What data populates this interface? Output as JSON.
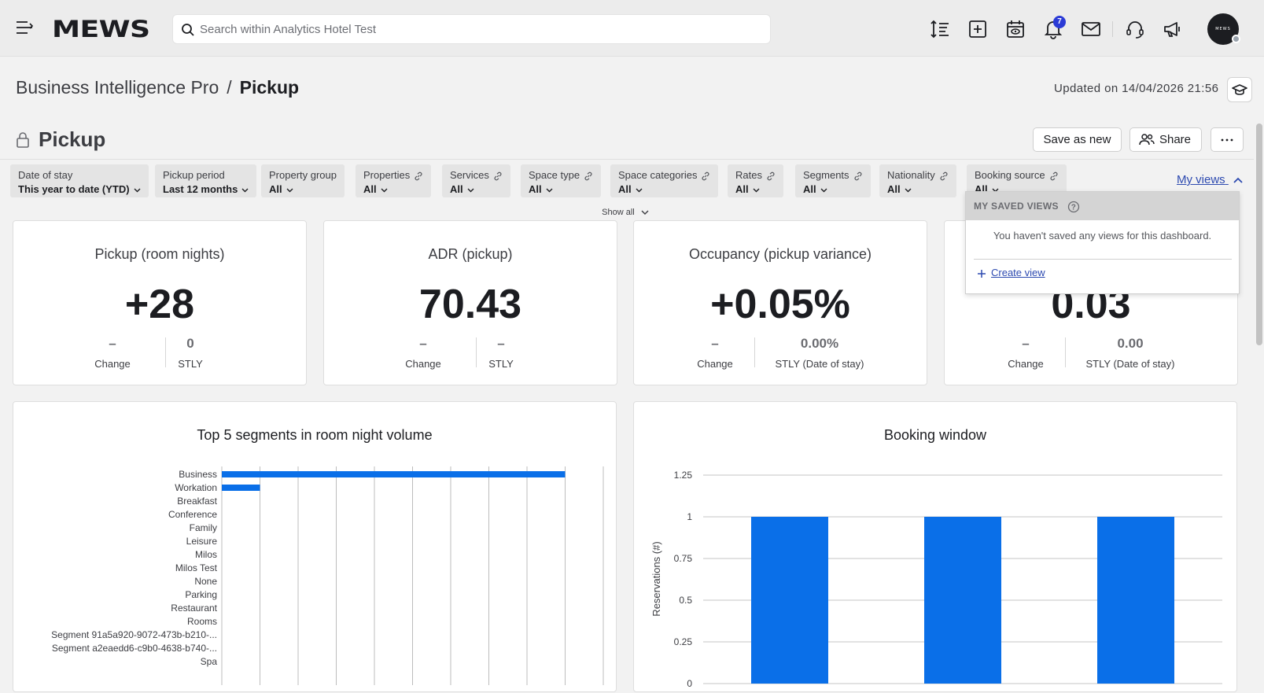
{
  "topbar": {
    "logo": "MEWS",
    "search_placeholder": "Search within Analytics Hotel Test",
    "notifications_count": "7",
    "avatar_text": "MEWS",
    "icons": [
      "menu-icon",
      "sort-icon",
      "add-icon",
      "calendar-view-icon",
      "bell-icon",
      "mail-icon",
      "headset-icon",
      "megaphone-icon"
    ]
  },
  "breadcrumb": {
    "parent": "Business Intelligence Pro",
    "separator": "/",
    "current": "Pickup"
  },
  "updated": "Updated on 14/04/2026 21:56",
  "page": {
    "title": "Pickup",
    "save_as_new": "Save as new",
    "share": "Share"
  },
  "filters": [
    {
      "label": "Date of stay",
      "value": "This year to date (YTD)",
      "linked": false
    },
    {
      "label": "Pickup period",
      "value": "Last 12 months",
      "linked": false
    },
    {
      "label": "Property group",
      "value": "All",
      "linked": false
    },
    {
      "label": "Properties",
      "value": "All",
      "linked": true
    },
    {
      "label": "Services",
      "value": "All",
      "linked": true
    },
    {
      "label": "Space type",
      "value": "All",
      "linked": true
    },
    {
      "label": "Space categories",
      "value": "All",
      "linked": true
    },
    {
      "label": "Rates",
      "value": "All",
      "linked": true
    },
    {
      "label": "Segments",
      "value": "All",
      "linked": true
    },
    {
      "label": "Nationality",
      "value": "All",
      "linked": true
    },
    {
      "label": "Booking source",
      "value": "All",
      "linked": true
    }
  ],
  "my_views": {
    "link": "My views",
    "header": "MY SAVED VIEWS",
    "empty": "You haven't saved any views for this dashboard.",
    "create": "Create view"
  },
  "show_all": "Show all",
  "kpis": [
    {
      "title": "Pickup (room nights)",
      "value": "+28",
      "change": "–",
      "change_label": "Change",
      "stly": "0",
      "stly_label": "STLY"
    },
    {
      "title": "ADR (pickup)",
      "value": "70.43",
      "change": "–",
      "change_label": "Change",
      "stly": "–",
      "stly_label": "STLY"
    },
    {
      "title": "Occupancy (pickup variance)",
      "value": "+0.05%",
      "change": "–",
      "change_label": "Change",
      "stly": "0.00%",
      "stly_label": "STLY (Date of stay)"
    },
    {
      "title": "",
      "value": "0.03",
      "change": "–",
      "change_label": "Change",
      "stly": "0.00",
      "stly_label": "STLY (Date of stay)"
    }
  ],
  "chart_data": [
    {
      "type": "bar",
      "orientation": "horizontal",
      "title": "Top 5 segments in room night volume",
      "categories": [
        "Business",
        "Workation",
        "Breakfast",
        "Conference",
        "Family",
        "Leisure",
        "Milos",
        "Milos Test",
        "None",
        "Parking",
        "Restaurant",
        "Rooms",
        "Segment 91a5a920-9072-473b-b210-...",
        "Segment a2eaedd6-c9b0-4638-b740-...",
        "Spa"
      ],
      "values": [
        9,
        1,
        0,
        0,
        0,
        0,
        0,
        0,
        0,
        0,
        0,
        0,
        0,
        0,
        0
      ],
      "xlim": [
        0,
        10
      ],
      "grid": true,
      "color": "#0a6fe8"
    },
    {
      "type": "bar",
      "title": "Booking window",
      "ylabel": "Reservations (#)",
      "yticks": [
        "0",
        "0.25",
        "0.5",
        "0.75",
        "1",
        "1.25"
      ],
      "ylim": [
        0,
        1.25
      ],
      "values": [
        1,
        1,
        1
      ],
      "grid": true,
      "color": "#0a6fe8"
    }
  ]
}
